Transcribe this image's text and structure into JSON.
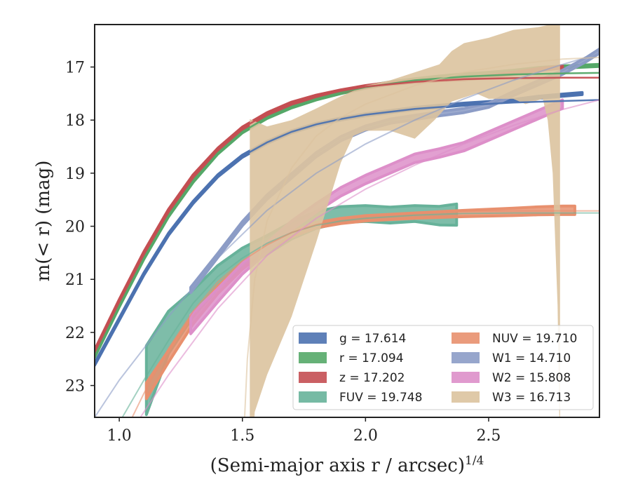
{
  "chart_data": {
    "type": "line",
    "xlabel": "(Semi-major axis r / arcsec)",
    "xlabel_sup": "1/4",
    "ylabel": "m(< r) (mag)",
    "xlim": [
      0.9,
      2.95
    ],
    "ylim": [
      23.6,
      16.2
    ],
    "y_inverted": true,
    "xticks": [
      1.0,
      1.5,
      2.0,
      2.5
    ],
    "xtick_labels": [
      "1.0",
      "1.5",
      "2.0",
      "2.5"
    ],
    "yticks": [
      17,
      18,
      19,
      20,
      21,
      22,
      23
    ],
    "ytick_labels": [
      "17",
      "18",
      "19",
      "20",
      "21",
      "22",
      "23"
    ],
    "grid": false,
    "legend_placement": "lower-right",
    "series": [
      {
        "name": "g = 17.614",
        "key": "g",
        "color": "#4c72b0",
        "kind": "band",
        "legend_col": 0,
        "x": [
          0.9,
          1.0,
          1.1,
          1.2,
          1.3,
          1.4,
          1.5,
          1.6,
          1.7,
          1.8,
          1.9,
          2.0,
          2.1,
          2.2,
          2.3,
          2.4,
          2.5,
          2.6,
          2.7,
          2.8,
          2.88
        ],
        "y": [
          22.6,
          21.75,
          20.9,
          20.15,
          19.55,
          19.05,
          18.68,
          18.42,
          18.22,
          18.08,
          17.98,
          17.9,
          17.84,
          17.78,
          17.74,
          17.7,
          17.67,
          17.63,
          17.57,
          17.53,
          17.5
        ],
        "width": [
          0.04,
          0.04,
          0.04,
          0.04,
          0.04,
          0.04,
          0.04,
          0.04,
          0.04,
          0.04,
          0.04,
          0.04,
          0.04,
          0.04,
          0.04,
          0.04,
          0.04,
          0.04,
          0.04,
          0.04,
          0.04
        ],
        "model_x": [
          0.9,
          1.0,
          1.1,
          1.2,
          1.3,
          1.4,
          1.5,
          1.6,
          1.7,
          1.8,
          1.9,
          2.0,
          2.2,
          2.4,
          2.6,
          2.8,
          2.95
        ],
        "model_y": [
          22.6,
          21.75,
          20.9,
          20.15,
          19.55,
          19.05,
          18.68,
          18.42,
          18.22,
          18.08,
          17.98,
          17.9,
          17.79,
          17.72,
          17.67,
          17.64,
          17.62
        ]
      },
      {
        "name": "r = 17.094",
        "key": "r",
        "color": "#55a868",
        "kind": "band",
        "legend_col": 0,
        "x": [
          0.9,
          1.0,
          1.1,
          1.2,
          1.3,
          1.4,
          1.5,
          1.6,
          1.7,
          1.8,
          1.9,
          2.0,
          2.1,
          2.2,
          2.3,
          2.4,
          2.5,
          2.6,
          2.7,
          2.8,
          2.95
        ],
        "y": [
          22.45,
          21.5,
          20.6,
          19.8,
          19.15,
          18.62,
          18.22,
          17.95,
          17.75,
          17.6,
          17.48,
          17.38,
          17.3,
          17.24,
          17.19,
          17.15,
          17.12,
          17.08,
          17.03,
          17.0,
          16.97
        ],
        "width": [
          0.04,
          0.04,
          0.04,
          0.04,
          0.04,
          0.04,
          0.04,
          0.04,
          0.04,
          0.04,
          0.04,
          0.04,
          0.04,
          0.04,
          0.04,
          0.04,
          0.04,
          0.04,
          0.04,
          0.04,
          0.04
        ],
        "model_x": [
          0.9,
          1.0,
          1.1,
          1.2,
          1.3,
          1.4,
          1.5,
          1.6,
          1.7,
          1.8,
          1.9,
          2.0,
          2.2,
          2.4,
          2.6,
          2.8,
          2.95
        ],
        "model_y": [
          22.45,
          21.5,
          20.6,
          19.8,
          19.15,
          18.62,
          18.22,
          17.95,
          17.75,
          17.6,
          17.48,
          17.38,
          17.25,
          17.18,
          17.14,
          17.12,
          17.11
        ]
      },
      {
        "name": "z = 17.202",
        "key": "z",
        "color": "#c44e52",
        "kind": "band",
        "legend_col": 0,
        "x": [
          0.9,
          1.0,
          1.1,
          1.2,
          1.3,
          1.4,
          1.5,
          1.6,
          1.7,
          1.8,
          1.9,
          2.0,
          2.1,
          2.2,
          2.3,
          2.4,
          2.5,
          2.6,
          2.7,
          2.8
        ],
        "y": [
          22.35,
          21.4,
          20.5,
          19.7,
          19.05,
          18.55,
          18.15,
          17.88,
          17.68,
          17.55,
          17.45,
          17.37,
          17.31,
          17.27,
          17.24,
          17.22,
          17.18,
          17.12,
          17.05,
          17.0
        ],
        "width": [
          0.04,
          0.04,
          0.04,
          0.04,
          0.04,
          0.04,
          0.04,
          0.04,
          0.04,
          0.04,
          0.04,
          0.04,
          0.04,
          0.04,
          0.04,
          0.04,
          0.04,
          0.04,
          0.04,
          0.04
        ],
        "model_x": [
          0.9,
          1.0,
          1.1,
          1.2,
          1.3,
          1.4,
          1.5,
          1.6,
          1.7,
          1.8,
          1.9,
          2.0,
          2.2,
          2.4,
          2.6,
          2.8,
          2.95
        ],
        "model_y": [
          22.35,
          21.4,
          20.5,
          19.7,
          19.05,
          18.55,
          18.15,
          17.88,
          17.68,
          17.55,
          17.45,
          17.37,
          17.28,
          17.23,
          17.21,
          17.2,
          17.2
        ]
      },
      {
        "name": "FUV = 19.748",
        "key": "FUV",
        "color": "#67b29a",
        "kind": "band",
        "legend_col": 0,
        "x": [
          1.11,
          1.2,
          1.3,
          1.4,
          1.5,
          1.6,
          1.7,
          1.8,
          1.9,
          2.0,
          2.1,
          2.2,
          2.3,
          2.37
        ],
        "y": [
          22.9,
          22.0,
          21.45,
          20.95,
          20.6,
          20.35,
          20.08,
          19.88,
          19.78,
          19.76,
          19.79,
          19.76,
          19.8,
          19.78
        ],
        "width": [
          1.3,
          0.8,
          0.5,
          0.42,
          0.38,
          0.35,
          0.32,
          0.32,
          0.3,
          0.3,
          0.3,
          0.3,
          0.35,
          0.4
        ],
        "model_x": [
          1.0,
          1.1,
          1.2,
          1.3,
          1.4,
          1.5,
          1.6,
          1.7,
          1.8,
          1.9,
          2.0,
          2.2,
          2.4,
          2.6,
          2.8,
          2.95
        ],
        "model_y": [
          23.7,
          22.9,
          22.15,
          21.45,
          20.95,
          20.6,
          20.32,
          20.12,
          19.98,
          19.9,
          19.85,
          19.79,
          19.76,
          19.75,
          19.75,
          19.75
        ]
      },
      {
        "name": "NUV = 19.710",
        "key": "NUV",
        "color": "#e8906e",
        "kind": "band",
        "legend_col": 1,
        "x": [
          1.11,
          1.2,
          1.3,
          1.4,
          1.5,
          1.6,
          1.7,
          1.8,
          1.9,
          2.0,
          2.2,
          2.4,
          2.6,
          2.7,
          2.8,
          2.85
        ],
        "y": [
          23.1,
          22.45,
          21.75,
          21.2,
          20.75,
          20.4,
          20.15,
          19.98,
          19.9,
          19.85,
          19.8,
          19.76,
          19.73,
          19.71,
          19.7,
          19.7
        ],
        "width": [
          0.3,
          0.22,
          0.18,
          0.14,
          0.12,
          0.1,
          0.1,
          0.1,
          0.1,
          0.1,
          0.1,
          0.12,
          0.14,
          0.15,
          0.16,
          0.16
        ],
        "model_x": [
          1.0,
          1.1,
          1.2,
          1.3,
          1.4,
          1.5,
          1.6,
          1.7,
          1.8,
          1.9,
          2.0,
          2.2,
          2.4,
          2.6,
          2.8,
          2.95
        ],
        "model_y": [
          24.1,
          23.15,
          22.3,
          21.6,
          21.05,
          20.65,
          20.35,
          20.12,
          19.97,
          19.87,
          19.81,
          19.75,
          19.72,
          19.71,
          19.71,
          19.71
        ]
      },
      {
        "name": "W1 = 14.710",
        "key": "W1",
        "color": "#8c9cc6",
        "kind": "band",
        "legend_col": 1,
        "x": [
          1.29,
          1.4,
          1.5,
          1.6,
          1.7,
          1.8,
          1.9,
          2.0,
          2.1,
          2.2,
          2.3,
          2.4,
          2.5,
          2.6,
          2.7,
          2.8,
          2.9,
          2.95
        ],
        "y": [
          21.2,
          20.55,
          19.95,
          19.45,
          19.05,
          18.65,
          18.35,
          18.15,
          18.02,
          17.95,
          17.88,
          17.82,
          17.72,
          17.5,
          17.3,
          17.1,
          16.85,
          16.7
        ],
        "width": [
          0.1,
          0.08,
          0.08,
          0.08,
          0.08,
          0.08,
          0.08,
          0.08,
          0.08,
          0.08,
          0.08,
          0.08,
          0.08,
          0.08,
          0.08,
          0.08,
          0.08,
          0.08
        ],
        "model_x": [
          0.9,
          1.0,
          1.2,
          1.4,
          1.6,
          1.8,
          2.0,
          2.2,
          2.4,
          2.6,
          2.8,
          2.95
        ],
        "model_y": [
          23.6,
          22.9,
          21.7,
          20.6,
          19.7,
          19.0,
          18.45,
          18.0,
          17.6,
          17.25,
          16.95,
          16.75
        ]
      },
      {
        "name": "W2 = 15.808",
        "key": "W2",
        "color": "#dd8fc9",
        "kind": "band",
        "legend_col": 1,
        "x": [
          1.29,
          1.4,
          1.5,
          1.6,
          1.7,
          1.8,
          1.9,
          2.0,
          2.1,
          2.2,
          2.3,
          2.4,
          2.5,
          2.6,
          2.7,
          2.8
        ],
        "y": [
          21.85,
          21.3,
          20.8,
          20.4,
          19.98,
          19.65,
          19.35,
          19.12,
          18.92,
          18.72,
          18.62,
          18.5,
          18.3,
          18.1,
          17.9,
          17.7
        ],
        "width": [
          0.35,
          0.25,
          0.2,
          0.18,
          0.16,
          0.16,
          0.16,
          0.16,
          0.16,
          0.16,
          0.16,
          0.16,
          0.16,
          0.16,
          0.16,
          0.16
        ],
        "model_x": [
          1.0,
          1.2,
          1.4,
          1.6,
          1.8,
          2.0,
          2.2,
          2.4,
          2.6,
          2.8,
          2.95
        ],
        "model_y": [
          24.2,
          22.8,
          21.55,
          20.55,
          19.85,
          19.3,
          18.85,
          18.45,
          18.1,
          17.8,
          17.62
        ]
      },
      {
        "name": "W3 = 16.713",
        "key": "W3",
        "color": "#dcc39f",
        "kind": "polygon",
        "legend_col": 1,
        "polygon": [
          [
            1.53,
            24.5
          ],
          [
            1.53,
            17.98
          ],
          [
            1.6,
            18.12
          ],
          [
            1.7,
            18.0
          ],
          [
            1.8,
            17.78
          ],
          [
            1.9,
            17.55
          ],
          [
            2.0,
            17.35
          ],
          [
            2.1,
            17.25
          ],
          [
            2.2,
            17.1
          ],
          [
            2.3,
            16.95
          ],
          [
            2.35,
            16.7
          ],
          [
            2.4,
            16.55
          ],
          [
            2.5,
            16.45
          ],
          [
            2.6,
            16.3
          ],
          [
            2.7,
            16.25
          ],
          [
            2.75,
            16.2
          ],
          [
            2.79,
            16.2
          ],
          [
            2.79,
            24.5
          ],
          [
            2.78,
            21.5
          ],
          [
            2.76,
            19.0
          ],
          [
            2.74,
            18.0
          ],
          [
            2.72,
            17.6
          ],
          [
            2.65,
            17.7
          ],
          [
            2.6,
            17.6
          ],
          [
            2.5,
            17.6
          ],
          [
            2.45,
            17.5
          ],
          [
            2.35,
            17.65
          ],
          [
            2.28,
            18.0
          ],
          [
            2.2,
            18.35
          ],
          [
            2.1,
            18.2
          ],
          [
            2.0,
            18.2
          ],
          [
            1.95,
            18.3
          ],
          [
            1.9,
            18.8
          ],
          [
            1.8,
            20.3
          ],
          [
            1.7,
            21.7
          ],
          [
            1.6,
            22.8
          ],
          [
            1.55,
            23.5
          ],
          [
            1.54,
            24.5
          ]
        ],
        "model_x": [
          1.5,
          1.52,
          1.55,
          1.6,
          1.7,
          1.8,
          1.9,
          2.0,
          2.2,
          2.4,
          2.6,
          2.8,
          2.95
        ],
        "model_y": [
          24.5,
          22.5,
          21.0,
          19.9,
          18.9,
          18.3,
          17.95,
          17.7,
          17.35,
          17.1,
          16.95,
          16.85,
          16.82
        ]
      }
    ]
  }
}
